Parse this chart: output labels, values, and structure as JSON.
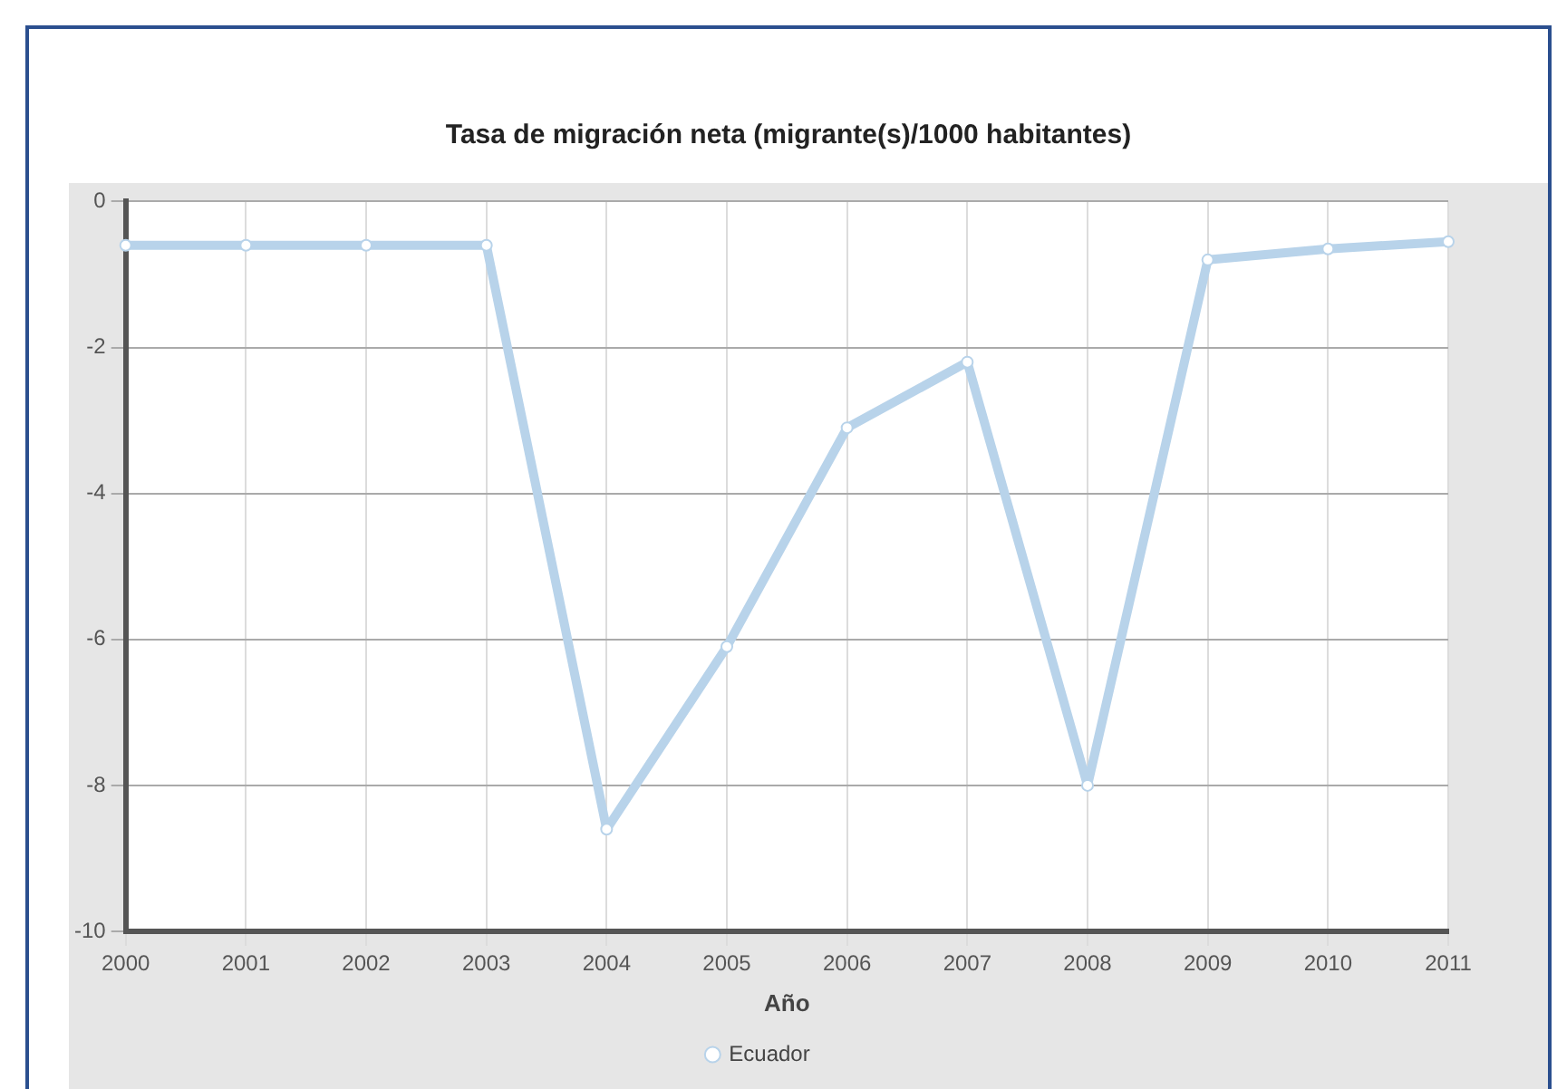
{
  "chart_data": {
    "type": "line",
    "title": "Tasa de migración neta (migrante(s)/1000 habitantes)",
    "xlabel": "Año",
    "categories": [
      "2000",
      "2001",
      "2002",
      "2003",
      "2004",
      "2005",
      "2006",
      "2007",
      "2008",
      "2009",
      "2010",
      "2011"
    ],
    "series": [
      {
        "name": "Ecuador",
        "color": "#b8d3ea",
        "values": [
          -0.6,
          -0.6,
          -0.6,
          -0.6,
          -8.6,
          -6.1,
          -3.1,
          -2.2,
          -8,
          -0.8,
          -0.65,
          -0.55
        ]
      }
    ],
    "ylim": [
      -10,
      0
    ],
    "yticks": [
      -10,
      -8,
      -6,
      -4,
      -2,
      0
    ],
    "grid": true,
    "legend": "bottom",
    "marker": "circle",
    "line_style": "solid"
  }
}
